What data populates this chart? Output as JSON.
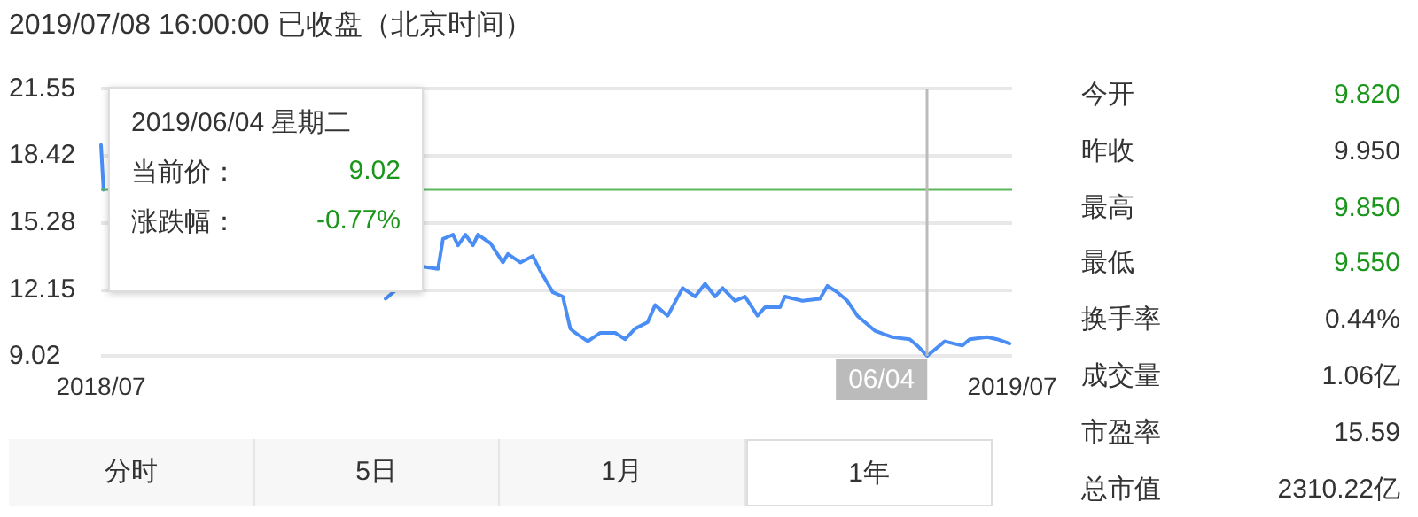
{
  "chart_data": [
    {
      "type": "line",
      "title": "2019/07/08 16:00:00 已收盘（北京时间）",
      "series": [
        {
          "color": "#4a8ef5",
          "x": [
            "2018-07-08",
            "2018-07-09",
            "2018-07-10",
            "2018-10-30",
            "2018-11-14",
            "2018-11-20",
            "2018-11-22",
            "2018-11-26",
            "2018-11-28",
            "2018-12-01",
            "2018-12-04",
            "2018-12-06",
            "2018-12-11",
            "2018-12-16",
            "2018-12-18",
            "2018-12-23",
            "2018-12-28",
            "2018-12-31",
            "2019-01-05",
            "2019-01-09",
            "2019-01-12",
            "2019-01-14",
            "2019-01-19",
            "2019-01-24",
            "2019-01-30",
            "2019-02-03",
            "2019-02-07",
            "2019-02-12",
            "2019-02-15",
            "2019-02-20",
            "2019-02-26",
            "2019-03-03",
            "2019-03-07",
            "2019-03-11",
            "2019-03-14",
            "2019-03-19",
            "2019-03-23",
            "2019-03-28",
            "2019-03-31",
            "2019-04-06",
            "2019-04-08",
            "2019-04-15",
            "2019-04-22",
            "2019-04-25",
            "2019-04-29",
            "2019-05-03",
            "2019-05-07",
            "2019-05-14",
            "2019-05-21",
            "2019-05-28",
            "2019-05-31",
            "2019-06-04",
            "2019-06-11",
            "2019-06-18",
            "2019-06-21",
            "2019-06-28",
            "2019-07-02",
            "2019-07-07"
          ],
          "values": [
            18.9,
            16.8,
            null,
            11.7,
            13.2,
            13.1,
            14.5,
            14.7,
            14.2,
            14.7,
            14.2,
            14.7,
            14.3,
            13.4,
            13.8,
            13.4,
            13.7,
            13.0,
            12.0,
            11.8,
            10.3,
            10.1,
            9.7,
            10.1,
            10.1,
            9.8,
            10.3,
            10.6,
            11.4,
            10.9,
            12.2,
            11.8,
            12.4,
            11.8,
            12.2,
            11.6,
            11.8,
            10.9,
            11.3,
            11.3,
            11.8,
            11.6,
            11.7,
            12.3,
            12.0,
            11.6,
            10.9,
            10.2,
            9.9,
            9.8,
            9.5,
            9.02,
            9.7,
            9.5,
            9.8,
            9.9,
            9.8,
            9.6
          ]
        }
      ],
      "xlim": [
        "2018-07-08",
        "2019-07-08"
      ],
      "xticks": [
        {
          "value": "2018-07-08",
          "label": "2018/07"
        },
        {
          "value": "2019-07-08",
          "label": "2019/07"
        }
      ],
      "ylim": [
        9.02,
        21.55
      ],
      "yticks": [
        9.02,
        12.15,
        15.28,
        18.42,
        21.55
      ],
      "grid": "y",
      "marker": "none",
      "line_style": "solid",
      "ref_lines": [
        {
          "axis": "y",
          "value": 16.8,
          "color": "#5cb85c"
        },
        {
          "axis": "x",
          "value": "2019-06-04",
          "label": "06/04",
          "color": "#bbbbbb"
        }
      ],
      "annotations": [
        "2019/06/04 星期二",
        "当前价：",
        "9.02",
        "涨跌幅：",
        "-0.77%",
        "分时",
        "5日",
        "1月",
        "1年"
      ]
    },
    {
      "type": "other",
      "categories": [
        "今开",
        "昨收",
        "最高",
        "最低",
        "换手率",
        "成交量",
        "市盈率",
        "总市值"
      ],
      "value_labels": [
        "9.820",
        "9.950",
        "9.850",
        "9.550",
        "0.44%",
        "1.06亿",
        "15.59",
        "2310.22亿"
      ],
      "colors": [
        "#1a961a",
        "#333333",
        "#1a961a",
        "#1a961a",
        "#333333",
        "#333333",
        "#333333",
        "#333333"
      ]
    }
  ]
}
